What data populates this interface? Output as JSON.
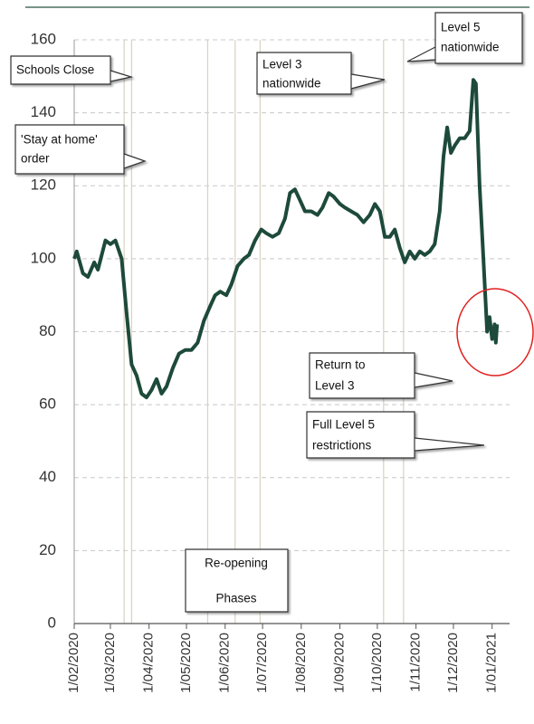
{
  "chart_data": {
    "type": "line",
    "x": [
      "2020-02-01",
      "2020-02-03",
      "2020-02-08",
      "2020-02-12",
      "2020-02-17",
      "2020-02-20",
      "2020-02-26",
      "2020-03-01",
      "2020-03-05",
      "2020-03-10",
      "2020-03-14",
      "2020-03-18",
      "2020-03-22",
      "2020-03-26",
      "2020-03-30",
      "2020-04-03",
      "2020-04-07",
      "2020-04-11",
      "2020-04-15",
      "2020-04-20",
      "2020-04-25",
      "2020-04-30",
      "2020-05-05",
      "2020-05-10",
      "2020-05-15",
      "2020-05-20",
      "2020-05-24",
      "2020-05-28",
      "2020-06-02",
      "2020-06-06",
      "2020-06-11",
      "2020-06-16",
      "2020-06-20",
      "2020-06-25",
      "2020-06-30",
      "2020-07-04",
      "2020-07-09",
      "2020-07-14",
      "2020-07-19",
      "2020-07-23",
      "2020-07-27",
      "2020-07-31",
      "2020-08-04",
      "2020-08-09",
      "2020-08-14",
      "2020-08-18",
      "2020-08-23",
      "2020-08-27",
      "2020-09-01",
      "2020-09-05",
      "2020-09-10",
      "2020-09-15",
      "2020-09-20",
      "2020-09-25",
      "2020-09-29",
      "2020-10-03",
      "2020-10-07",
      "2020-10-11",
      "2020-10-15",
      "2020-10-19",
      "2020-10-23",
      "2020-10-27",
      "2020-10-31",
      "2020-11-04",
      "2020-11-08",
      "2020-11-12",
      "2020-11-16",
      "2020-11-20",
      "2020-11-23",
      "2020-11-26",
      "2020-11-29",
      "2020-12-02",
      "2020-12-06",
      "2020-12-10",
      "2020-12-14",
      "2020-12-17",
      "2020-12-19",
      "2020-12-22",
      "2020-12-25",
      "2020-12-28",
      "2020-12-30",
      "2021-01-01",
      "2021-01-03",
      "2021-01-04",
      "2021-01-05"
    ],
    "series": [
      {
        "color": "#1d4a3a",
        "values": [
          100,
          102,
          96,
          95,
          99,
          97,
          105,
          104,
          105,
          100,
          85,
          71,
          68,
          63,
          62,
          64,
          67,
          63,
          65,
          70,
          74,
          75,
          75,
          77,
          83,
          87,
          90,
          91,
          90,
          93,
          98,
          100,
          101,
          105,
          108,
          107,
          106,
          107,
          111,
          118,
          119,
          116,
          113,
          113,
          112,
          114,
          118,
          117,
          115,
          114,
          113,
          112,
          110,
          112,
          115,
          113,
          106,
          106,
          108,
          103,
          99,
          102,
          100,
          102,
          101,
          102,
          104,
          113,
          128,
          136,
          129,
          131,
          133,
          133,
          135,
          149,
          148,
          120,
          100,
          80,
          84,
          78,
          82,
          77,
          82
        ]
      }
    ],
    "xlim": [
      "2020-02-01",
      "2021-01-15"
    ],
    "xticks": [
      {
        "value": "2020-02-01",
        "label": "1/02/2020"
      },
      {
        "value": "2020-03-01",
        "label": "1/03/2020"
      },
      {
        "value": "2020-04-01",
        "label": "1/04/2020"
      },
      {
        "value": "2020-05-01",
        "label": "1/05/2020"
      },
      {
        "value": "2020-06-01",
        "label": "1/06/2020"
      },
      {
        "value": "2020-07-01",
        "label": "1/07/2020"
      },
      {
        "value": "2020-08-01",
        "label": "1/08/2020"
      },
      {
        "value": "2020-09-01",
        "label": "1/09/2020"
      },
      {
        "value": "2020-10-01",
        "label": "1/10/2020"
      },
      {
        "value": "2020-11-01",
        "label": "1/11/2020"
      },
      {
        "value": "2020-12-01",
        "label": "1/12/2020"
      },
      {
        "value": "2021-01-01",
        "label": "1/01/2021"
      }
    ],
    "ylim": [
      0,
      160
    ],
    "yticks": [
      0,
      20,
      40,
      60,
      80,
      100,
      120,
      140,
      160
    ],
    "grid": true,
    "vlines": [
      "2020-03-12",
      "2020-03-18",
      "2020-05-18",
      "2020-06-09",
      "2020-06-29",
      "2020-10-06",
      "2020-10-22"
    ],
    "annotations": [
      {
        "lines": [
          "Schools Close"
        ]
      },
      {
        "lines": [
          "'Stay at home'",
          "order"
        ]
      },
      {
        "lines": [
          "Level 3",
          "nationwide"
        ]
      },
      {
        "lines": [
          "Level 5",
          "nationwide"
        ]
      },
      {
        "lines": [
          "Return to",
          "Level 3"
        ]
      },
      {
        "lines": [
          "Full Level 5",
          "restrictions"
        ]
      },
      {
        "lines": [
          "Re-opening",
          "Phases"
        ]
      }
    ]
  }
}
